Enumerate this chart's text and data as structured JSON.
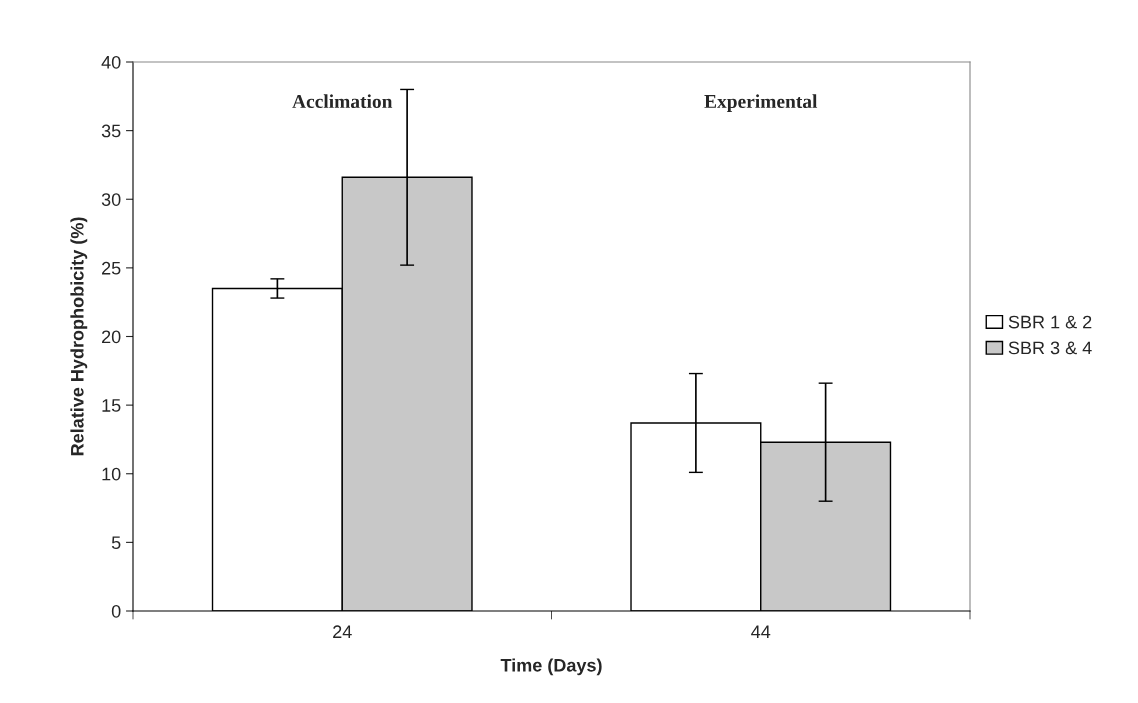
{
  "chart_data": {
    "type": "bar",
    "xlabel": "Time (Days)",
    "ylabel": "Relative Hydrophobicity (%)",
    "categories": [
      "24",
      "44"
    ],
    "series": [
      {
        "name": "SBR 1 & 2",
        "color": "#ffffff",
        "values": [
          23.5,
          13.7
        ],
        "errors": [
          0.7,
          3.6
        ]
      },
      {
        "name": "SBR 3 & 4",
        "color": "#c8c8c8",
        "values": [
          31.6,
          12.3
        ],
        "errors": [
          6.4,
          4.3
        ]
      }
    ],
    "ylim": [
      0,
      40
    ],
    "yticks": [
      0,
      5,
      10,
      15,
      20,
      25,
      30,
      35,
      40
    ],
    "grid": false,
    "legend": "right",
    "annotations": [
      "Acclimation",
      "Experimental"
    ]
  }
}
